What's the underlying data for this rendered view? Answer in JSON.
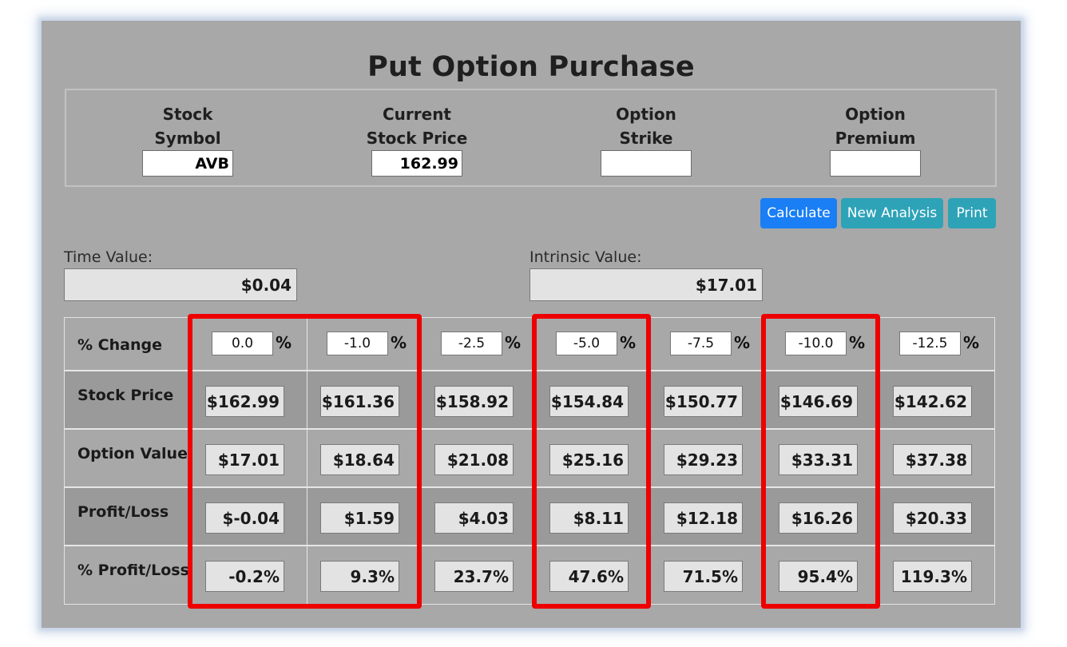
{
  "title": "Put Option Purchase",
  "fields": [
    {
      "label": "Stock Symbol",
      "value": "AVB"
    },
    {
      "label": "Current Stock Price",
      "value": "162.99"
    },
    {
      "label": "Option Strike",
      "value": ""
    },
    {
      "label": "Option Premium",
      "value": ""
    }
  ],
  "buttons": {
    "calculate": "Calculate",
    "new_analysis": "New Analysis",
    "print": "Print"
  },
  "colors": {
    "calculate": "#1a7ef5",
    "secondary": "#2ea3b8",
    "highlight": "#ee0000",
    "panel": "#a8a8a8"
  },
  "time_value": {
    "label": "Time Value:",
    "value": "$0.04"
  },
  "intrinsic_value": {
    "label": "Intrinsic Value:",
    "value": "$17.01"
  },
  "table": {
    "percent_sign": "%",
    "rows": {
      "pct_change": "% Change",
      "stock_price": "Stock Price",
      "option_value": "Option Value",
      "profit_loss": "Profit/Loss",
      "pct_profit_loss": "% Profit/Loss"
    },
    "columns": [
      {
        "pct_change": "0.0",
        "stock_price": "$162.99",
        "option_value": "$17.01",
        "profit_loss": "$-0.04",
        "pct_profit_loss": "-0.2%",
        "highlighted": true
      },
      {
        "pct_change": "-1.0",
        "stock_price": "$161.36",
        "option_value": "$18.64",
        "profit_loss": "$1.59",
        "pct_profit_loss": "9.3%",
        "highlighted": true
      },
      {
        "pct_change": "-2.5",
        "stock_price": "$158.92",
        "option_value": "$21.08",
        "profit_loss": "$4.03",
        "pct_profit_loss": "23.7%",
        "highlighted": false
      },
      {
        "pct_change": "-5.0",
        "stock_price": "$154.84",
        "option_value": "$25.16",
        "profit_loss": "$8.11",
        "pct_profit_loss": "47.6%",
        "highlighted": true
      },
      {
        "pct_change": "-7.5",
        "stock_price": "$150.77",
        "option_value": "$29.23",
        "profit_loss": "$12.18",
        "pct_profit_loss": "71.5%",
        "highlighted": false
      },
      {
        "pct_change": "-10.0",
        "stock_price": "$146.69",
        "option_value": "$33.31",
        "profit_loss": "$16.26",
        "pct_profit_loss": "95.4%",
        "highlighted": true
      },
      {
        "pct_change": "-12.5",
        "stock_price": "$142.62",
        "option_value": "$37.38",
        "profit_loss": "$20.33",
        "pct_profit_loss": "119.3%",
        "highlighted": false
      }
    ]
  }
}
